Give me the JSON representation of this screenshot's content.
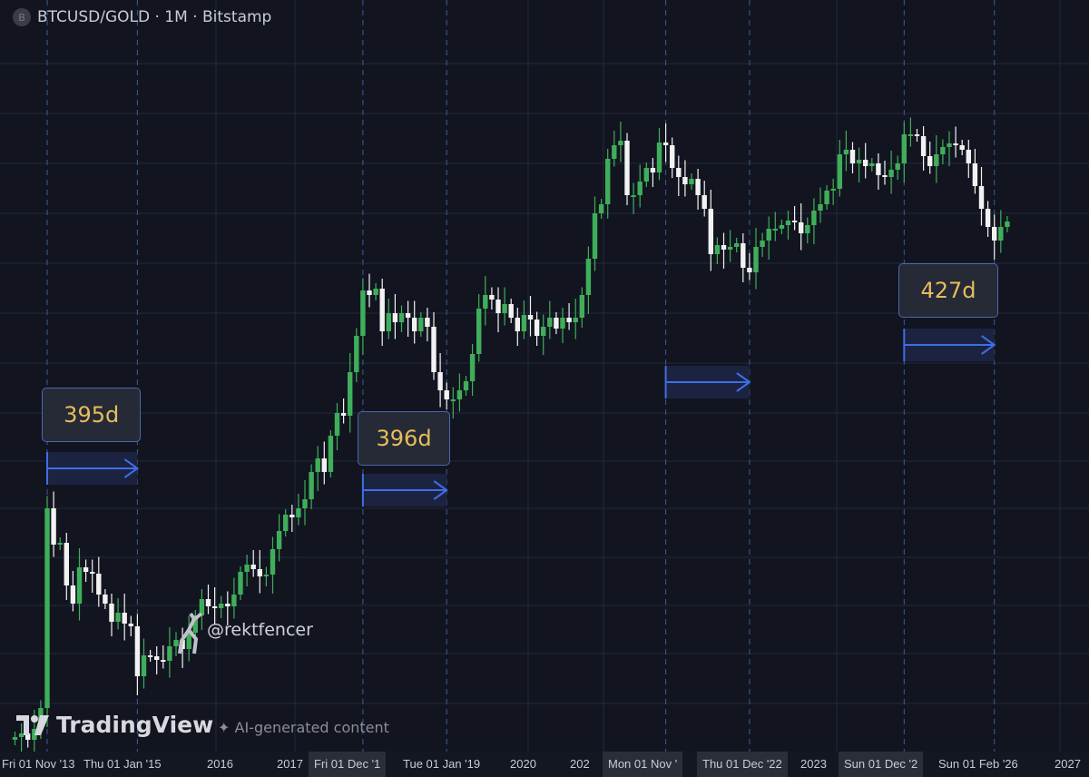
{
  "header": {
    "symbol_icon": "B",
    "title": "BTCUSD/GOLD · 1M · Bitstamp"
  },
  "watermark": {
    "brand": "TradingView",
    "ai_notice": "AI-generated content",
    "author": "@rektfencer"
  },
  "colors": {
    "up": "#3fae5a",
    "down": "#f2f2f2",
    "background": "#121520",
    "measure": "#3d6ee8",
    "measure_label": "#e6bd5c"
  },
  "x_axis_labels": [
    "Fri 01 Nov '13",
    "Thu 01 Jan '15",
    "2016",
    "2017",
    "Fri 01 Dec '1",
    "Tue 01 Jan '19",
    "2020",
    "202",
    "Mon 01 Nov '",
    "Thu 01 Dec '22",
    "2023",
    "Sun 01 Dec '2",
    "Sun 01 Feb '26",
    "2027"
  ],
  "measurements": [
    {
      "label": "395d",
      "from": "2013-11",
      "to": "2015-01"
    },
    {
      "label": "396d",
      "from": "2017-12",
      "to": "2019-01"
    },
    {
      "label": "",
      "from": "2021-11",
      "to": "2022-12"
    },
    {
      "label": "427d",
      "from": "2024-12",
      "to": "2026-02"
    }
  ],
  "chart_data": {
    "type": "candlestick",
    "title": "BTCUSD/GOLD · 1M · Bitstamp",
    "interval": "1M",
    "start_month": "2013-06",
    "y_scale": "unlabeled",
    "ylim": [
      0,
      75
    ],
    "grid": true,
    "close": [
      1.8,
      2.2,
      1.5,
      2.7,
      5.0,
      27.0,
      23.0,
      23.2,
      18.5,
      16.5,
      20.5,
      20.0,
      19.8,
      17.5,
      16.5,
      14.5,
      15.5,
      14.3,
      14.0,
      8.5,
      10.8,
      10.7,
      10.3,
      10.2,
      11.8,
      12.5,
      11.5,
      13.3,
      15.2,
      17.0,
      16.2,
      16.0,
      16.5,
      16.2,
      17.5,
      20.0,
      20.8,
      20.3,
      19.5,
      19.7,
      22.5,
      24.5,
      26.3,
      26.0,
      27.0,
      28.0,
      31.0,
      32.5,
      31.0,
      35.0,
      37.5,
      37.2,
      42.0,
      46.0,
      51.0,
      50.5,
      51.2,
      46.5,
      48.5,
      47.5,
      48.5,
      48.0,
      46.5,
      48.0,
      47.0,
      42.0,
      40.0,
      39.0,
      39.0,
      40.0,
      41.0,
      44.0,
      49.0,
      50.5,
      50.0,
      48.5,
      49.5,
      48.0,
      46.5,
      48.3,
      47.8,
      46.0,
      47.0,
      48.0,
      46.8,
      48.0,
      47.5,
      48.0,
      50.5,
      54.5,
      59.5,
      60.5,
      65.5,
      67.0,
      67.5,
      61.5,
      61.5,
      63.0,
      64.5,
      64.0,
      67.3,
      67.0,
      64.5,
      63.5,
      62.7,
      63.3,
      61.5,
      60.0,
      55.0,
      56.0,
      55.5,
      55.8,
      56.2,
      53.5,
      53.0,
      55.8,
      56.5,
      57.8,
      57.8,
      58.2,
      58.7,
      58.5,
      57.3,
      58.2,
      59.8,
      60.5,
      62.0,
      62.2,
      66.0,
      66.5,
      65.0,
      65.4,
      64.7,
      65.0,
      63.7,
      63.5,
      64.3,
      65.0,
      68.2,
      68.2,
      68.0,
      65.8,
      64.7,
      66.0,
      66.8,
      67.2,
      67.0,
      66.5,
      65.0,
      62.5,
      60.0,
      58.0,
      56.5,
      58.0,
      58.6
    ]
  }
}
